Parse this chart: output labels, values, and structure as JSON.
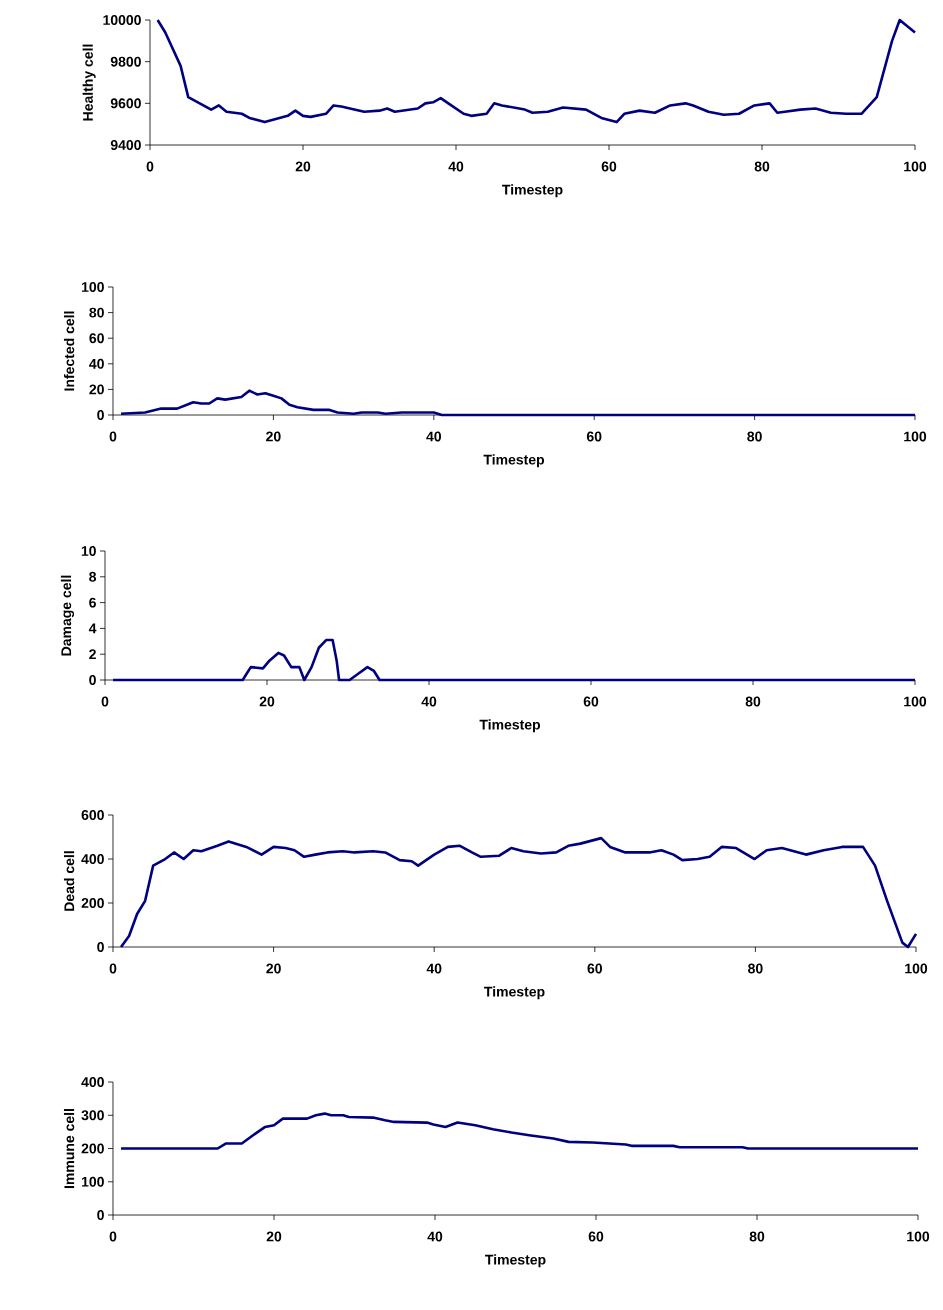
{
  "chart_data": [
    {
      "type": "line",
      "xlabel": "Timestep",
      "ylabel": "Healthy cell",
      "color": "#000080",
      "xlim": [
        0,
        100
      ],
      "xticks": [
        0,
        20,
        40,
        60,
        80,
        100
      ],
      "ylim": [
        9400,
        10000
      ],
      "yticks": [
        9400,
        9600,
        9800,
        10000
      ],
      "x": [
        1,
        2,
        4,
        5,
        8,
        9,
        10,
        12,
        13,
        15,
        18,
        19,
        20,
        21,
        23,
        24,
        25,
        28,
        30,
        31,
        32,
        35,
        36,
        37,
        38,
        39,
        41,
        42,
        44,
        45,
        46,
        49,
        50,
        52,
        54,
        57,
        59,
        61,
        62,
        64,
        66,
        68,
        70,
        71,
        73,
        75,
        77,
        79,
        81,
        82,
        83,
        85,
        87,
        89,
        91,
        93,
        95,
        97,
        98,
        100
      ],
      "values": [
        10000,
        9940,
        9780,
        9630,
        9570,
        9590,
        9560,
        9550,
        9530,
        9510,
        9540,
        9565,
        9540,
        9535,
        9550,
        9590,
        9585,
        9560,
        9565,
        9575,
        9560,
        9575,
        9600,
        9605,
        9625,
        9600,
        9550,
        9540,
        9550,
        9600,
        9590,
        9570,
        9555,
        9560,
        9580,
        9570,
        9530,
        9510,
        9550,
        9565,
        9555,
        9590,
        9600,
        9590,
        9560,
        9545,
        9550,
        9590,
        9600,
        9555,
        9560,
        9570,
        9575,
        9555,
        9550,
        9550,
        9630,
        9900,
        10000,
        9940
      ]
    },
    {
      "type": "line",
      "xlabel": "Timestep",
      "ylabel": "Infected cell",
      "color": "#000080",
      "xlim": [
        0,
        100
      ],
      "xticks": [
        0,
        20,
        40,
        60,
        80,
        100
      ],
      "ylim": [
        0,
        100
      ],
      "yticks": [
        0,
        20,
        40,
        60,
        80,
        100
      ],
      "x": [
        1,
        4,
        6,
        8,
        10,
        11,
        12,
        13,
        14,
        16,
        17,
        18,
        19,
        20,
        21,
        22,
        23,
        25,
        27,
        28,
        30,
        31,
        33,
        34,
        36,
        40,
        41,
        100
      ],
      "values": [
        1,
        2,
        5,
        5,
        10,
        9,
        9,
        13,
        12,
        14,
        19,
        16,
        17,
        15,
        13,
        8,
        6,
        4,
        4,
        2,
        1,
        2,
        2,
        1,
        2,
        2,
        0,
        0
      ]
    },
    {
      "type": "line",
      "xlabel": "Timestep",
      "ylabel": "Damage cell",
      "color": "#000080",
      "xlim": [
        0,
        100
      ],
      "xticks": [
        0,
        20,
        40,
        60,
        80,
        100
      ],
      "ylim": [
        0,
        10
      ],
      "yticks": [
        0,
        2,
        4,
        6,
        8,
        10
      ],
      "x": [
        1,
        17,
        17.5,
        18,
        19.5,
        20.3,
        21.4,
        22.1,
        23,
        24,
        24.6,
        25.5,
        26.4,
        27.3,
        28.1,
        28.6,
        28.9,
        30.2,
        31.3,
        32.4,
        33.2,
        33.9,
        100
      ],
      "values": [
        0,
        0,
        0.5,
        1,
        0.9,
        1.5,
        2.1,
        1.9,
        1,
        1,
        0,
        1,
        2.5,
        3.1,
        3.1,
        1.5,
        0,
        0,
        0.5,
        1,
        0.7,
        0,
        0
      ]
    },
    {
      "type": "line",
      "xlabel": "Timestep",
      "ylabel": "Dead cell",
      "color": "#000080",
      "xlim": [
        0,
        100
      ],
      "xticks": [
        0,
        20,
        40,
        60,
        80,
        100
      ],
      "ylim": [
        0,
        600
      ],
      "yticks": [
        0,
        200,
        400,
        600
      ],
      "x": [
        1,
        2,
        3,
        4,
        5,
        6.5,
        7.6,
        8.8,
        10,
        11,
        13,
        14.4,
        16.6,
        18.5,
        20,
        21.5,
        22.6,
        23.8,
        25.2,
        26.7,
        28.6,
        30.1,
        32.4,
        33.9,
        35.7,
        37.2,
        38,
        40,
        41.7,
        43.2,
        44.7,
        45.8,
        48.1,
        49.6,
        51.1,
        53.3,
        55.2,
        56.7,
        58.2,
        60.8,
        61.9,
        63.8,
        66.8,
        68.3,
        69.8,
        70.9,
        72.8,
        74.3,
        75.8,
        77.6,
        79.9,
        81.4,
        83.3,
        86.3,
        88.5,
        90.8,
        93.4,
        94.9,
        96.4,
        98.3,
        99,
        100
      ],
      "values": [
        0,
        50,
        150,
        210,
        370,
        400,
        430,
        400,
        440,
        435,
        460,
        480,
        455,
        420,
        455,
        450,
        440,
        410,
        420,
        430,
        435,
        430,
        435,
        430,
        395,
        390,
        370,
        420,
        455,
        460,
        430,
        410,
        415,
        450,
        435,
        425,
        430,
        460,
        470,
        495,
        455,
        430,
        430,
        440,
        420,
        395,
        400,
        410,
        455,
        450,
        400,
        440,
        450,
        420,
        440,
        455,
        455,
        370,
        210,
        20,
        0,
        60
      ]
    },
    {
      "type": "line",
      "xlabel": "Timestep",
      "ylabel": "Immune cell",
      "color": "#000080",
      "xlim": [
        0,
        100
      ],
      "xticks": [
        0,
        20,
        40,
        60,
        80,
        100
      ],
      "ylim": [
        0,
        400
      ],
      "yticks": [
        0,
        100,
        200,
        300,
        400
      ],
      "x": [
        1,
        13,
        14,
        16,
        17.4,
        18.9,
        20,
        21.1,
        24.1,
        25.2,
        26.3,
        27.1,
        28.6,
        29.3,
        32.3,
        33.8,
        34.9,
        39,
        39.8,
        41.3,
        42.8,
        45,
        47.2,
        49.5,
        51.7,
        54.7,
        56.6,
        59.6,
        63.7,
        64.4,
        69.6,
        70.4,
        78.2,
        78.9,
        100
      ],
      "values": [
        200,
        200,
        215,
        215,
        240,
        265,
        270,
        290,
        290,
        300,
        305,
        300,
        300,
        295,
        293,
        285,
        280,
        278,
        272,
        265,
        278,
        270,
        258,
        248,
        240,
        230,
        220,
        218,
        212,
        208,
        208,
        204,
        204,
        200,
        200
      ]
    }
  ]
}
